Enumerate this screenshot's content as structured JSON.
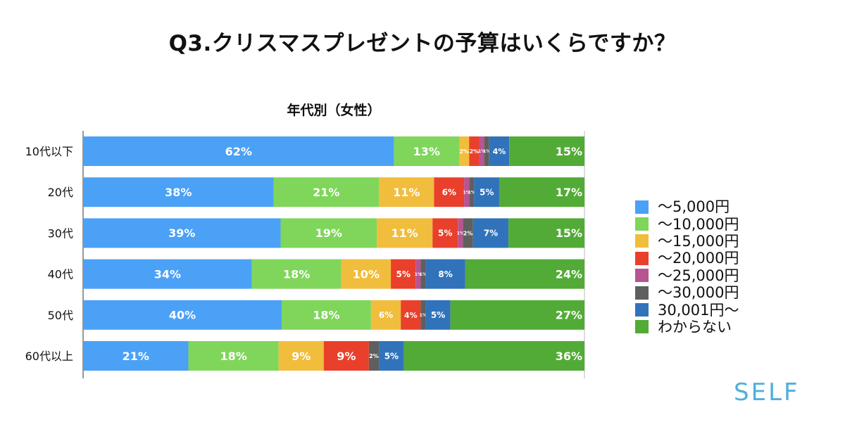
{
  "title": "Q3.クリスマスプレゼントの予算はいくらですか？",
  "brand": "SELF",
  "chart_data": {
    "type": "bar",
    "orientation": "horizontal",
    "stacked": true,
    "title": "年代別（女性）",
    "categories": [
      "10代以下",
      "20代",
      "30代",
      "40代",
      "50代",
      "60代以上"
    ],
    "series": [
      {
        "name": "〜5,000円",
        "color": "#4ba1f6",
        "values": [
          62,
          38,
          39,
          34,
          40,
          21
        ],
        "labels": [
          "62%",
          "38%",
          "39%",
          "34%",
          "40%",
          "21%"
        ]
      },
      {
        "name": "〜10,000円",
        "color": "#7fd65a",
        "values": [
          13,
          21,
          19,
          18,
          18,
          18
        ],
        "labels": [
          "13%",
          "21%",
          "19%",
          "18%",
          "18%",
          "18%"
        ]
      },
      {
        "name": "〜15,000円",
        "color": "#f1bd3c",
        "values": [
          2,
          11,
          11,
          10,
          6,
          9
        ],
        "labels": [
          "2%",
          "11%",
          "11%",
          "10%",
          "6%",
          "9%"
        ]
      },
      {
        "name": "〜20,000円",
        "color": "#e9402c",
        "values": [
          2,
          6,
          5,
          5,
          4,
          9
        ],
        "labels": [
          "2%",
          "6%",
          "5%",
          "5%",
          "4%",
          "9%"
        ]
      },
      {
        "name": "〜25,000円",
        "color": "#b85491",
        "values": [
          1,
          1,
          1,
          1,
          0,
          0
        ],
        "labels": [
          "1%",
          "1%",
          "1%",
          "1%",
          "",
          ""
        ]
      },
      {
        "name": "〜30,000円",
        "color": "#5f5f5f",
        "values": [
          1,
          1,
          2,
          1,
          1,
          2
        ],
        "labels": [
          "1%",
          "1%",
          "2%",
          "1%",
          "1%",
          "2%"
        ]
      },
      {
        "name": "30,001円〜",
        "color": "#3073bb",
        "values": [
          4,
          5,
          7,
          8,
          5,
          5
        ],
        "labels": [
          "4%",
          "5%",
          "7%",
          "8%",
          "5%",
          "5%"
        ]
      },
      {
        "name": "わからない",
        "color": "#52ab36",
        "values": [
          15,
          17,
          15,
          24,
          27,
          36
        ],
        "labels": [
          "15%",
          "17%",
          "15%",
          "24%",
          "27%",
          "36%"
        ]
      }
    ],
    "xlim": [
      0,
      100
    ],
    "grid": false,
    "legend_position": "right"
  }
}
